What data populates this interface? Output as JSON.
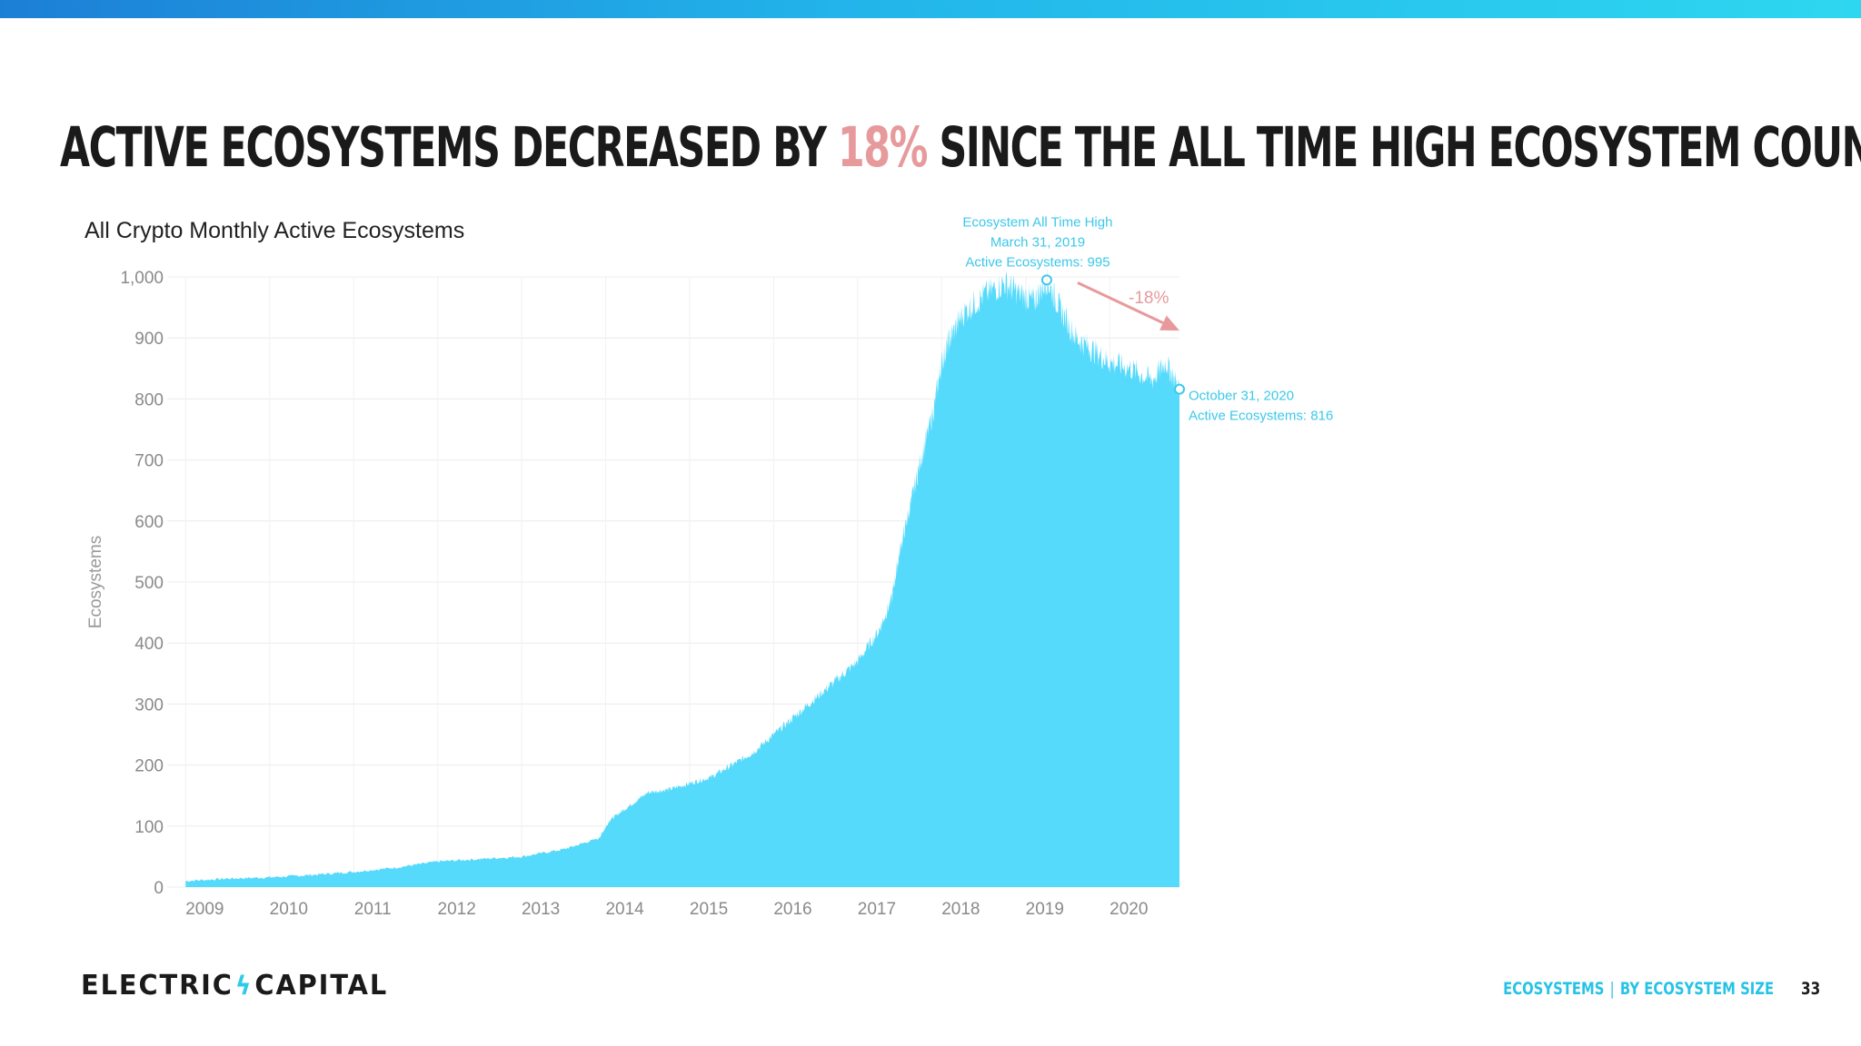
{
  "header": {
    "headline_before": "Active Ecosystems decreased by",
    "headline_accent": "18%",
    "headline_after": "since the all time high ecosystem count"
  },
  "colors": {
    "area": "#56dafb",
    "accent_pink": "#e79a9c",
    "footer_blue": "#27c3e6",
    "grid": "#ececec"
  },
  "footer": {
    "logo_left": "ELECTRIC",
    "logo_icon": "lightning-bolt-icon",
    "logo_right": "CAPITAL",
    "section": "Ecosystems",
    "subsection": "By Ecosystem Size",
    "page_number": "33"
  },
  "chart_data": {
    "type": "area",
    "title": "All Crypto Monthly Active Ecosystems",
    "xlabel": "",
    "ylabel": "Ecosystems",
    "ylim": [
      0,
      1000
    ],
    "yticks": [
      "0",
      "100",
      "200",
      "300",
      "400",
      "500",
      "600",
      "700",
      "800",
      "900",
      "1,000"
    ],
    "xticks": [
      "2009",
      "2010",
      "2011",
      "2012",
      "2013",
      "2014",
      "2015",
      "2016",
      "2017",
      "2018",
      "2019",
      "2020"
    ],
    "grid": true,
    "series": [
      {
        "x": [
          2009.0,
          2009.5,
          2010.0,
          2010.5,
          2011.0,
          2011.5,
          2012.0,
          2012.5,
          2013.0,
          2013.5,
          2013.92,
          2014.05,
          2014.25,
          2014.5,
          2014.75,
          2015.0,
          2015.25,
          2015.5,
          2015.75,
          2016.0,
          2016.25,
          2016.5,
          2016.75,
          2017.0,
          2017.25,
          2017.4,
          2017.5,
          2017.6,
          2017.75,
          2017.9,
          2018.0,
          2018.1,
          2018.25,
          2018.5,
          2018.75,
          2018.95,
          2019.1,
          2019.25,
          2019.4,
          2019.6,
          2019.8,
          2020.0,
          2020.25,
          2020.5,
          2020.67,
          2020.83
        ],
        "values": [
          10,
          14,
          16,
          20,
          25,
          32,
          42,
          46,
          50,
          62,
          80,
          110,
          130,
          155,
          160,
          170,
          180,
          200,
          220,
          250,
          280,
          310,
          340,
          370,
          420,
          470,
          550,
          610,
          700,
          780,
          860,
          900,
          940,
          970,
          990,
          970,
          960,
          995,
          950,
          900,
          880,
          860,
          850,
          830,
          860,
          816
        ]
      }
    ],
    "annotations": {
      "peak_line1": "Ecosystem All Time High",
      "peak_line2": "March 31, 2019",
      "peak_line3": "Active Ecosystems: 995",
      "peak_x": 2019.25,
      "peak_y": 995,
      "end_line1": "October 31, 2020",
      "end_line2": "Active Ecosystems: 816",
      "end_x": 2020.83,
      "end_y": 816,
      "change_label": "-18%"
    }
  }
}
